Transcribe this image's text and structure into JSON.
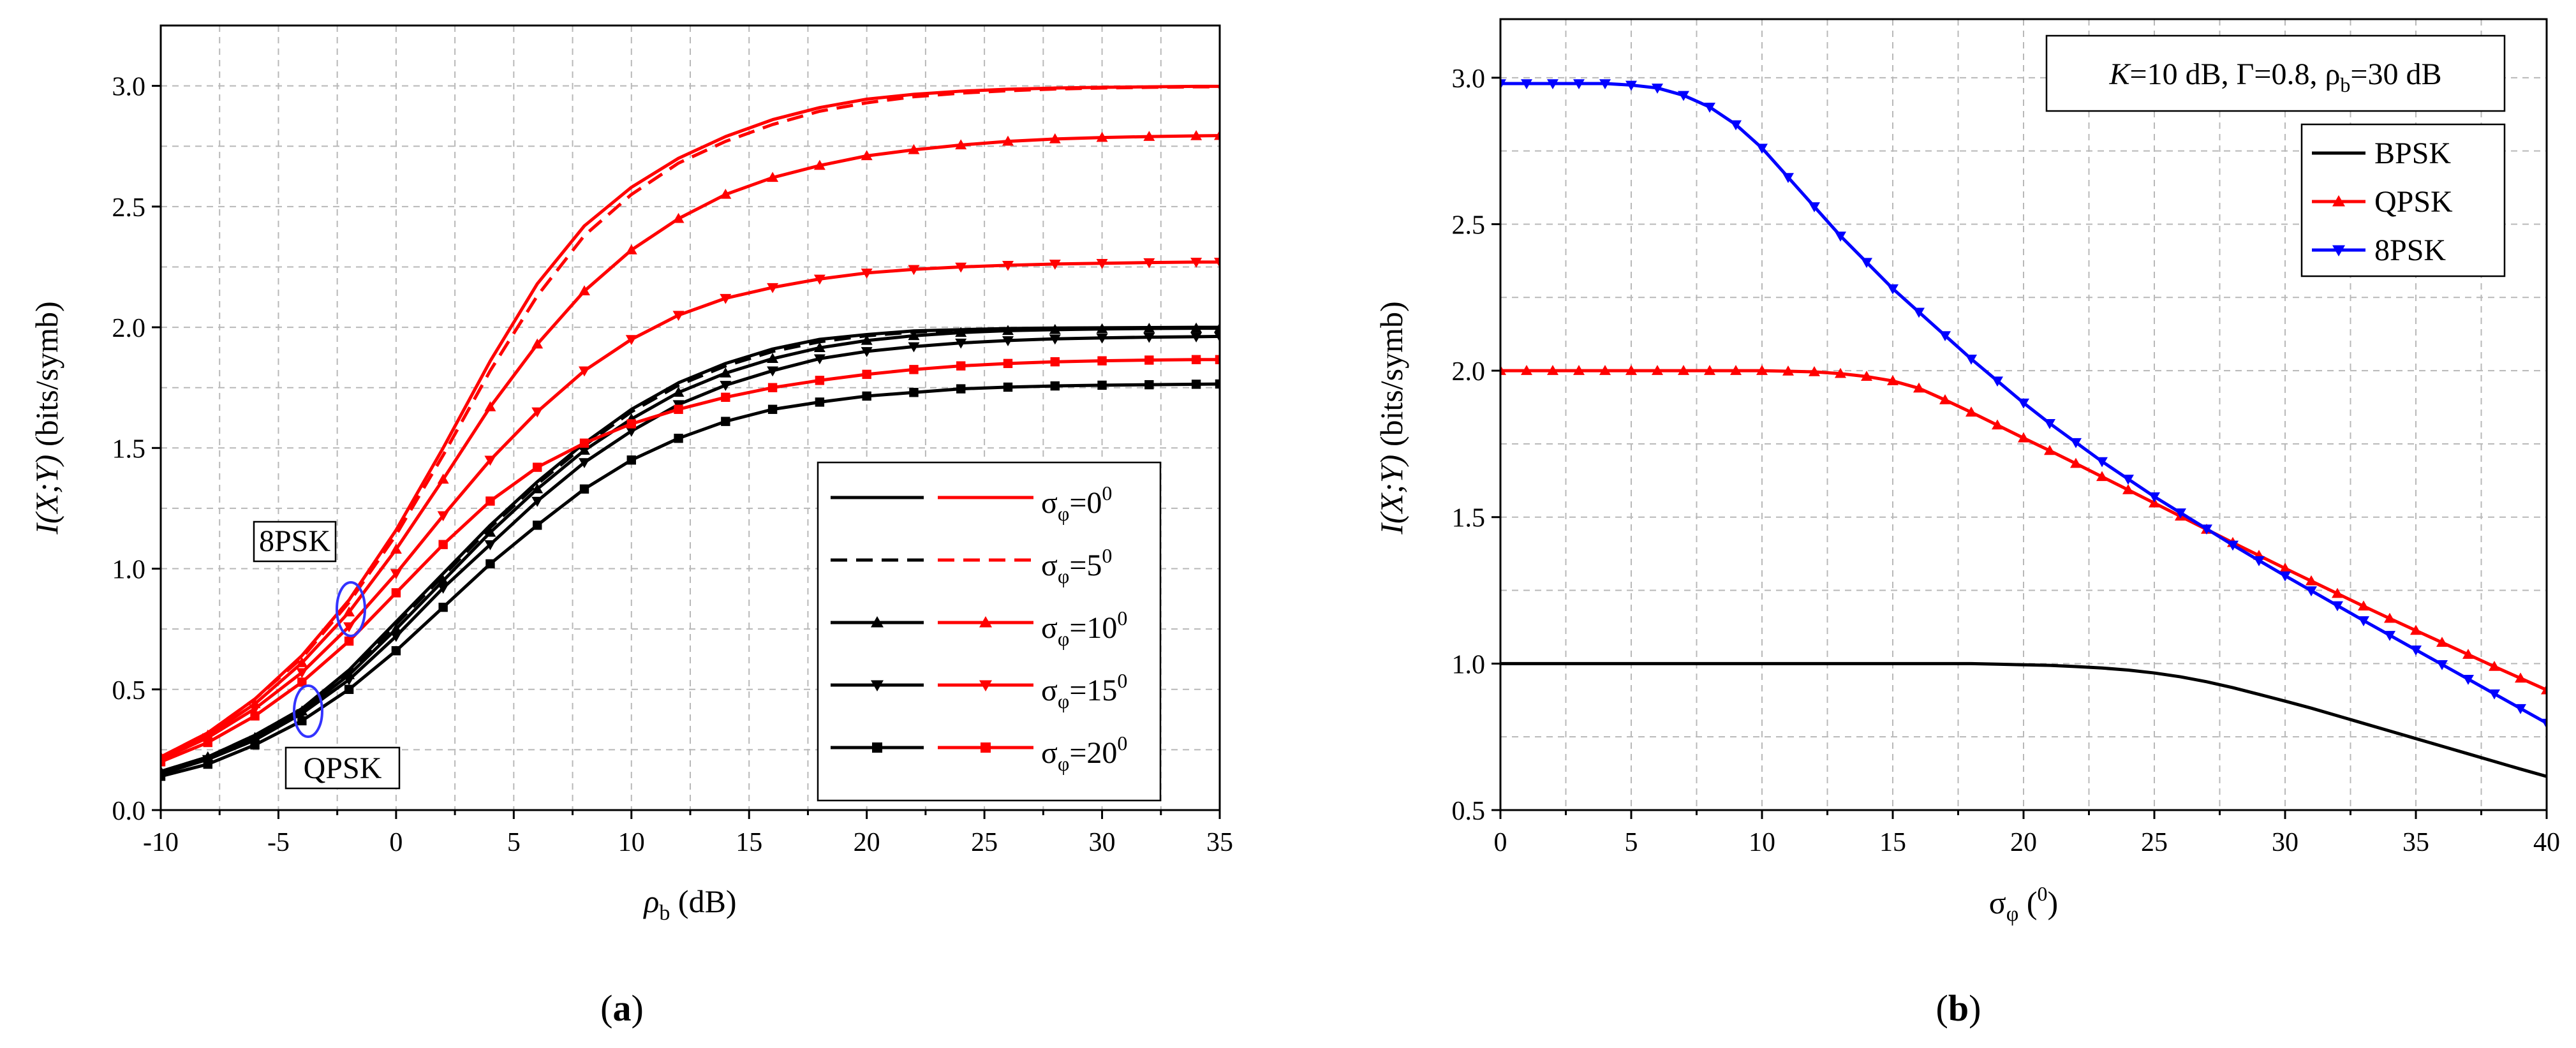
{
  "chart_data": [
    {
      "id": "a",
      "type": "line",
      "panel_label": "a",
      "xlabel_main": "ρ",
      "xlabel_sub": "b",
      "xlabel_unit": " (dB)",
      "ylabel_italic": "I(X;Y)",
      "ylabel_rest": " (bits/symb)",
      "xlim": [
        -10,
        35
      ],
      "ylim": [
        0,
        3.25
      ],
      "xticks": [
        -10,
        -5,
        0,
        5,
        10,
        15,
        20,
        25,
        30,
        35
      ],
      "yticks": [
        0.0,
        0.5,
        1.0,
        1.5,
        2.0,
        2.5,
        3.0
      ],
      "xtick_labels": [
        "-10",
        "-5",
        "0",
        "5",
        "10",
        "15",
        "20",
        "25",
        "30",
        "35"
      ],
      "ytick_labels": [
        "0.0",
        "0.5",
        "1.0",
        "1.5",
        "2.0",
        "2.5",
        "3.0"
      ],
      "grid": true,
      "colors": {
        "qpsk": "#000000",
        "psk8": "#ff0000",
        "ellipse": "#3333ff"
      },
      "x": [
        -10,
        -8,
        -6,
        -4,
        -2,
        0,
        2,
        4,
        6,
        8,
        10,
        12,
        14,
        16,
        18,
        20,
        22,
        24,
        26,
        28,
        30,
        32,
        34,
        35
      ],
      "series": [
        {
          "name": "QPSK σφ=0",
          "modulation": "QPSK",
          "sigma": 0,
          "dash": false,
          "marker": "none",
          "values": [
            0.16,
            0.22,
            0.31,
            0.42,
            0.58,
            0.78,
            0.98,
            1.18,
            1.36,
            1.52,
            1.66,
            1.77,
            1.85,
            1.91,
            1.95,
            1.97,
            1.985,
            1.99,
            1.995,
            1.997,
            1.998,
            1.999,
            2.0,
            2.0
          ]
        },
        {
          "name": "QPSK σφ=5",
          "modulation": "QPSK",
          "sigma": 5,
          "dash": true,
          "marker": "none",
          "values": [
            0.16,
            0.22,
            0.31,
            0.42,
            0.57,
            0.77,
            0.97,
            1.17,
            1.35,
            1.51,
            1.65,
            1.76,
            1.84,
            1.9,
            1.94,
            1.965,
            1.98,
            1.988,
            1.993,
            1.996,
            1.997,
            1.998,
            1.999,
            1.999
          ]
        },
        {
          "name": "QPSK σφ=10",
          "modulation": "QPSK",
          "sigma": 10,
          "dash": false,
          "marker": "triangle-up",
          "values": [
            0.16,
            0.22,
            0.3,
            0.41,
            0.56,
            0.75,
            0.95,
            1.15,
            1.33,
            1.49,
            1.62,
            1.73,
            1.81,
            1.87,
            1.915,
            1.945,
            1.965,
            1.978,
            1.986,
            1.99,
            1.993,
            1.995,
            1.996,
            1.996
          ]
        },
        {
          "name": "QPSK σφ=15",
          "modulation": "QPSK",
          "sigma": 15,
          "dash": false,
          "marker": "triangle-down",
          "values": [
            0.15,
            0.21,
            0.29,
            0.4,
            0.54,
            0.72,
            0.92,
            1.1,
            1.28,
            1.44,
            1.57,
            1.68,
            1.76,
            1.82,
            1.87,
            1.9,
            1.92,
            1.935,
            1.945,
            1.952,
            1.956,
            1.959,
            1.961,
            1.962
          ]
        },
        {
          "name": "QPSK σφ=20",
          "modulation": "QPSK",
          "sigma": 20,
          "dash": false,
          "marker": "square",
          "values": [
            0.14,
            0.19,
            0.27,
            0.37,
            0.5,
            0.66,
            0.84,
            1.02,
            1.18,
            1.33,
            1.45,
            1.54,
            1.61,
            1.66,
            1.69,
            1.715,
            1.73,
            1.745,
            1.752,
            1.757,
            1.76,
            1.762,
            1.764,
            1.765
          ]
        },
        {
          "name": "8PSK σφ=0",
          "modulation": "8PSK",
          "sigma": 0,
          "dash": false,
          "marker": "none",
          "values": [
            0.22,
            0.32,
            0.46,
            0.64,
            0.87,
            1.16,
            1.5,
            1.86,
            2.18,
            2.42,
            2.58,
            2.7,
            2.79,
            2.86,
            2.91,
            2.945,
            2.965,
            2.978,
            2.986,
            2.991,
            2.994,
            2.996,
            2.998,
            2.998
          ]
        },
        {
          "name": "8PSK σφ=5",
          "modulation": "8PSK",
          "sigma": 5,
          "dash": true,
          "marker": "none",
          "values": [
            0.22,
            0.32,
            0.46,
            0.63,
            0.86,
            1.14,
            1.47,
            1.82,
            2.13,
            2.38,
            2.55,
            2.68,
            2.77,
            2.84,
            2.895,
            2.93,
            2.955,
            2.97,
            2.98,
            2.987,
            2.991,
            2.994,
            2.996,
            2.996
          ]
        },
        {
          "name": "8PSK σφ=10",
          "modulation": "8PSK",
          "sigma": 10,
          "dash": false,
          "marker": "triangle-up",
          "values": [
            0.22,
            0.31,
            0.44,
            0.61,
            0.82,
            1.08,
            1.37,
            1.67,
            1.93,
            2.15,
            2.32,
            2.45,
            2.55,
            2.62,
            2.67,
            2.71,
            2.735,
            2.755,
            2.77,
            2.78,
            2.786,
            2.79,
            2.793,
            2.794
          ]
        },
        {
          "name": "8PSK σφ=15",
          "modulation": "8PSK",
          "sigma": 15,
          "dash": false,
          "marker": "triangle-down",
          "values": [
            0.21,
            0.3,
            0.42,
            0.57,
            0.76,
            0.98,
            1.22,
            1.45,
            1.65,
            1.82,
            1.95,
            2.05,
            2.12,
            2.165,
            2.2,
            2.225,
            2.24,
            2.25,
            2.257,
            2.262,
            2.265,
            2.268,
            2.27,
            2.27
          ]
        },
        {
          "name": "8PSK σφ=20",
          "modulation": "8PSK",
          "sigma": 20,
          "dash": false,
          "marker": "square",
          "values": [
            0.2,
            0.28,
            0.39,
            0.53,
            0.7,
            0.9,
            1.1,
            1.28,
            1.42,
            1.52,
            1.6,
            1.66,
            1.71,
            1.75,
            1.78,
            1.805,
            1.825,
            1.84,
            1.85,
            1.857,
            1.861,
            1.864,
            1.866,
            1.866
          ]
        }
      ],
      "legend_entries": [
        {
          "text": "=0",
          "sigma": 0,
          "marker": "none",
          "dash": false,
          "sup": "0"
        },
        {
          "text": "=5",
          "sigma": 5,
          "marker": "none",
          "dash": true,
          "sup": "0"
        },
        {
          "text": "=10",
          "sigma": 10,
          "marker": "triangle-up",
          "dash": false,
          "sup": "0"
        },
        {
          "text": "=15",
          "sigma": 15,
          "marker": "triangle-down",
          "dash": false,
          "sup": "0"
        },
        {
          "text": "=20",
          "sigma": 20,
          "marker": "square",
          "dash": false,
          "sup": "0"
        }
      ],
      "legend_symbol": "σ",
      "legend_sub": "φ",
      "legend_position": "bottom-right",
      "annotations": [
        {
          "text": "8PSK",
          "target_x": -2,
          "target_y": 0.84
        },
        {
          "text": "QPSK",
          "target_x": -4,
          "target_y": 0.41
        }
      ]
    },
    {
      "id": "b",
      "type": "line",
      "panel_label": "b",
      "xlabel_main": "σ",
      "xlabel_sub": "φ",
      "xlabel_unit_open": " (",
      "xlabel_sup": "0",
      "xlabel_unit_close": ")",
      "ylabel_italic": "I(X;Y)",
      "ylabel_rest": " (bits/symb)",
      "xlim": [
        0,
        40
      ],
      "ylim": [
        0.5,
        3.2
      ],
      "xticks": [
        0,
        5,
        10,
        15,
        20,
        25,
        30,
        35,
        40
      ],
      "yticks": [
        0.5,
        1.0,
        1.5,
        2.0,
        2.5,
        3.0
      ],
      "xtick_labels": [
        "0",
        "5",
        "10",
        "15",
        "20",
        "25",
        "30",
        "35",
        "40"
      ],
      "ytick_labels": [
        "0.5",
        "1.0",
        "1.5",
        "2.0",
        "2.5",
        "3.0"
      ],
      "grid": true,
      "params": {
        "k_italic": "K",
        "k_rest": "=10 dB, Γ=0.8, ρ",
        "rho_sub": "b",
        "rho_rest": "=30 dB"
      },
      "x": [
        0,
        1,
        2,
        3,
        4,
        5,
        6,
        7,
        8,
        9,
        10,
        11,
        12,
        13,
        14,
        15,
        16,
        17,
        18,
        19,
        20,
        21,
        22,
        23,
        24,
        25,
        26,
        27,
        28,
        29,
        30,
        31,
        32,
        33,
        34,
        35,
        36,
        37,
        38,
        39,
        40
      ],
      "series": [
        {
          "name": "BPSK",
          "color": "#000000",
          "marker": "none",
          "values": [
            1.0,
            1.0,
            1.0,
            1.0,
            1.0,
            1.0,
            1.0,
            1.0,
            1.0,
            1.0,
            1.0,
            1.0,
            1.0,
            1.0,
            1.0,
            1.0,
            1.0,
            1.0,
            1.0,
            0.998,
            0.996,
            0.994,
            0.99,
            0.985,
            0.978,
            0.968,
            0.955,
            0.938,
            0.918,
            0.895,
            0.872,
            0.848,
            0.822,
            0.796,
            0.77,
            0.744,
            0.718,
            0.692,
            0.666,
            0.64,
            0.615
          ]
        },
        {
          "name": "QPSK",
          "color": "#ff0000",
          "marker": "triangle-up",
          "values": [
            2.0,
            2.0,
            2.0,
            2.0,
            2.0,
            2.0,
            2.0,
            2.0,
            2.0,
            2.0,
            2.0,
            1.998,
            1.996,
            1.99,
            1.98,
            1.965,
            1.94,
            1.9,
            1.858,
            1.814,
            1.77,
            1.727,
            1.683,
            1.638,
            1.593,
            1.548,
            1.503,
            1.458,
            1.413,
            1.369,
            1.325,
            1.282,
            1.239,
            1.196,
            1.154,
            1.113,
            1.072,
            1.031,
            0.99,
            0.95,
            0.91
          ]
        },
        {
          "name": "8PSK",
          "color": "#0000ff",
          "marker": "triangle-down",
          "values": [
            2.98,
            2.98,
            2.98,
            2.98,
            2.98,
            2.975,
            2.965,
            2.94,
            2.9,
            2.84,
            2.76,
            2.66,
            2.56,
            2.46,
            2.37,
            2.28,
            2.2,
            2.12,
            2.04,
            1.965,
            1.89,
            1.82,
            1.755,
            1.69,
            1.63,
            1.57,
            1.515,
            1.46,
            1.405,
            1.352,
            1.3,
            1.249,
            1.198,
            1.147,
            1.097,
            1.047,
            0.997,
            0.947,
            0.897,
            0.847,
            0.797
          ]
        }
      ],
      "legend_entries": [
        "BPSK",
        "QPSK",
        "8PSK"
      ],
      "legend_position": "top-right"
    }
  ]
}
